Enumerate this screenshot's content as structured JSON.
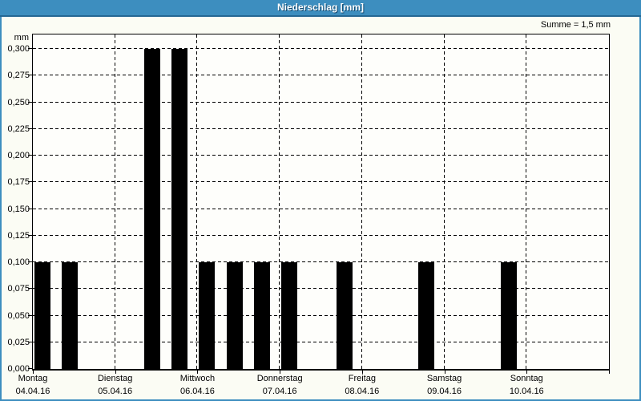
{
  "window": {
    "title": "Niederschlag [mm]"
  },
  "chart_data": {
    "type": "bar",
    "title": "Niederschlag [mm]",
    "unit_label": "mm",
    "ylabel": "mm",
    "sum_label": "Summe = 1,5 mm",
    "total_mm": 1.5,
    "ylim": [
      0,
      0.3
    ],
    "ytick_step": 0.025,
    "ytick_labels": [
      "0,000",
      "0,025",
      "0,050",
      "0,075",
      "0,100",
      "0,125",
      "0,150",
      "0,175",
      "0,200",
      "0,225",
      "0,250",
      "0,275",
      "0,300"
    ],
    "grid": "dashed",
    "legend": "none",
    "slots_per_day": 3,
    "days": [
      {
        "name": "Montag",
        "date": "04.04.16"
      },
      {
        "name": "Dienstag",
        "date": "05.04.16"
      },
      {
        "name": "Mittwoch",
        "date": "06.04.16"
      },
      {
        "name": "Donnerstag",
        "date": "07.04.16"
      },
      {
        "name": "Freitag",
        "date": "08.04.16"
      },
      {
        "name": "Samstag",
        "date": "09.04.16"
      },
      {
        "name": "Sonntag",
        "date": "10.04.16"
      }
    ],
    "bars": [
      {
        "day": 0,
        "slot": 0,
        "value_mm": 0.1
      },
      {
        "day": 0,
        "slot": 1,
        "value_mm": 0.1
      },
      {
        "day": 1,
        "slot": 1,
        "value_mm": 0.3
      },
      {
        "day": 1,
        "slot": 2,
        "value_mm": 0.3
      },
      {
        "day": 2,
        "slot": 0,
        "value_mm": 0.1
      },
      {
        "day": 2,
        "slot": 1,
        "value_mm": 0.1
      },
      {
        "day": 2,
        "slot": 2,
        "value_mm": 0.1
      },
      {
        "day": 3,
        "slot": 0,
        "value_mm": 0.1
      },
      {
        "day": 3,
        "slot": 2,
        "value_mm": 0.1
      },
      {
        "day": 4,
        "slot": 2,
        "value_mm": 0.1
      },
      {
        "day": 5,
        "slot": 2,
        "value_mm": 0.1
      }
    ]
  },
  "colors": {
    "titlebar_bg": "#3D8EBF",
    "titlebar_edge": "#256793",
    "frame": "#3D8EBF",
    "window_bg": "#FBFCF4",
    "plot_bg": "#FEFEFB",
    "bar": "#000000",
    "grid": "#000000",
    "text": "#000000"
  }
}
